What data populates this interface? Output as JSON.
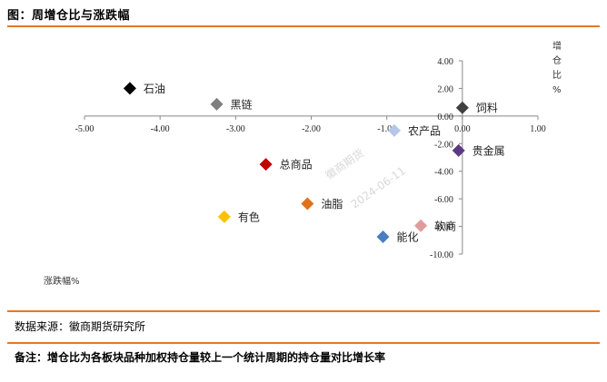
{
  "figure": {
    "title": "图：周增仓比与涨跌幅",
    "source": "数据来源：徽商期货研究所",
    "note": "备注：增仓比为各板块品种加权持仓量较上一个统计周期的持仓量对比增长率"
  },
  "watermark": {
    "line1": "徽商期货",
    "line2": "2024-06-11"
  },
  "chart_data": {
    "type": "scatter",
    "xlabel": "涨跌幅%",
    "ylabel": "增仓比%",
    "xlim": [
      -5,
      1
    ],
    "ylim": [
      -10,
      4
    ],
    "x_ticks": [
      -5,
      -4,
      -3,
      -2,
      -1,
      0,
      1
    ],
    "y_ticks": [
      4,
      2,
      0,
      -2,
      -4,
      -6,
      -8,
      -10
    ],
    "x_tick_labels": [
      "-5.00",
      "-4.00",
      "-3.00",
      "-2.00",
      "-1.00",
      "0.00",
      "1.00"
    ],
    "y_tick_labels": [
      "4.00",
      "2.00",
      "0.00",
      "-2.00",
      "-4.00",
      "-6.00",
      "-8.00",
      "-10.00"
    ],
    "grid": false,
    "points": [
      {
        "label": "石油",
        "x": -4.4,
        "y": 2.0,
        "color": "#000000"
      },
      {
        "label": "黑链",
        "x": -3.25,
        "y": 0.85,
        "color": "#7f7f7f"
      },
      {
        "label": "饲料",
        "x": 0.0,
        "y": 0.6,
        "color": "#404040"
      },
      {
        "label": "农产品",
        "x": -0.9,
        "y": -1.05,
        "color": "#b4c7e7"
      },
      {
        "label": "贵金属",
        "x": -0.05,
        "y": -2.5,
        "color": "#5b3a82"
      },
      {
        "label": "总商品",
        "x": -2.6,
        "y": -3.5,
        "color": "#c00000"
      },
      {
        "label": "油脂",
        "x": -2.05,
        "y": -6.35,
        "color": "#e0701a"
      },
      {
        "label": "有色",
        "x": -3.15,
        "y": -7.3,
        "color": "#ffc000"
      },
      {
        "label": "软商",
        "x": -0.55,
        "y": -7.95,
        "color": "#e29b9b"
      },
      {
        "label": "能化",
        "x": -1.05,
        "y": -8.75,
        "color": "#4a7ec2"
      }
    ]
  }
}
